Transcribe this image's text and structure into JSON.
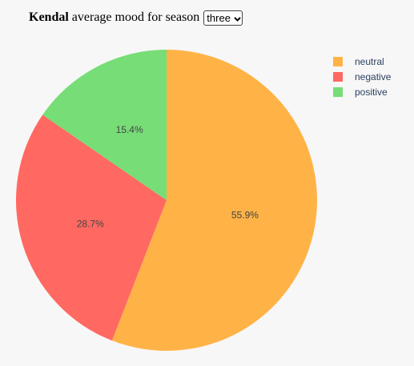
{
  "header": {
    "name": "Kendal",
    "text": "average mood for season",
    "season_value": "three"
  },
  "chart_data": {
    "type": "pie",
    "categories": [
      "neutral",
      "negative",
      "positive"
    ],
    "values": [
      55.9,
      28.7,
      15.4
    ],
    "labels": [
      "55.9%",
      "28.7%",
      "15.4%"
    ],
    "colors": [
      "#ffb347",
      "#ff6961",
      "#77dd77"
    ],
    "legend_position": "top-right",
    "start_at": "top",
    "direction": "clockwise"
  }
}
